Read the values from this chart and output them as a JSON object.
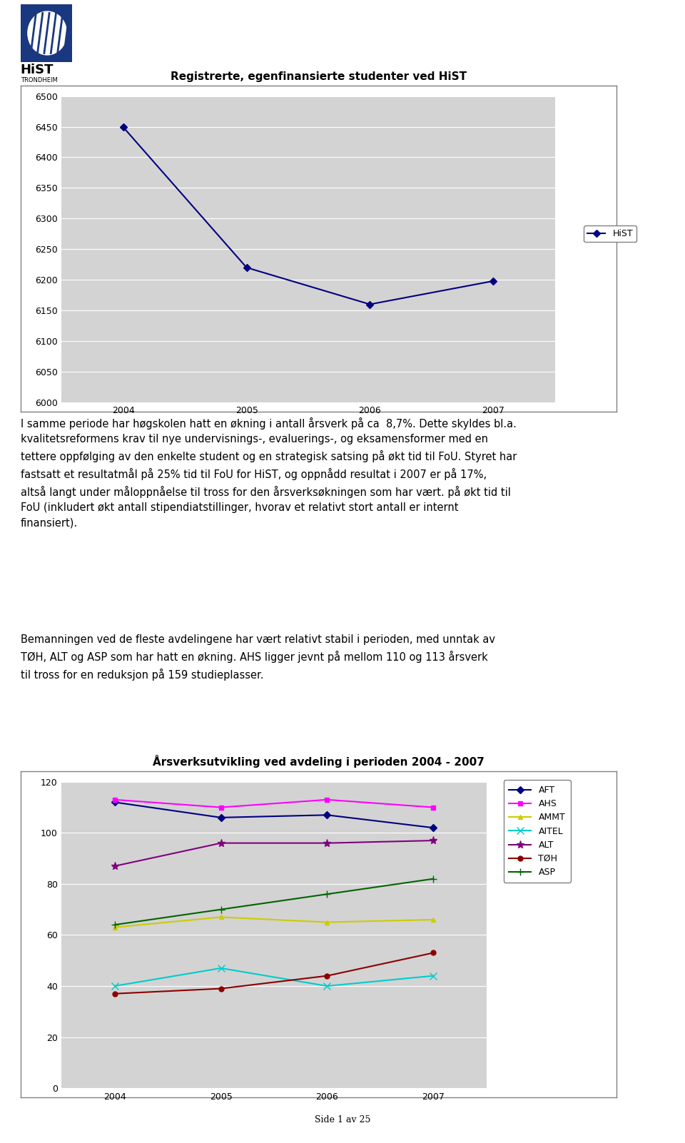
{
  "page_bg": "#ffffff",
  "chart1": {
    "title": "Registrerte, egenfinansierte studenter ved HiST",
    "years": [
      2004,
      2005,
      2006,
      2007
    ],
    "hist_values": [
      6449,
      6220,
      6160,
      6198
    ],
    "color": "#000080",
    "ylim": [
      6000,
      6500
    ],
    "yticks": [
      6000,
      6050,
      6100,
      6150,
      6200,
      6250,
      6300,
      6350,
      6400,
      6450,
      6500
    ],
    "legend_label": "HiST"
  },
  "text1_lines": [
    "I samme periode har høgskolen hatt en økning i antall årsverk på ca  8,7%. Dette skyldes bl.a.",
    "kvalitetsreformens krav til nye undervisnings-, evaluerings-, og eksamensformer med en",
    "tettere oppfølging av den enkelte student og en strategisk satsing på økt tid til FoU. Styret har",
    "fastsatt et resultatmål på 25% tid til FoU for HiST, og oppnådd resultat i 2007 er på 17%,",
    "altså langt under måloppnåelse til tross for den årsverksøkningen som har vært. på økt tid til",
    "FoU (inkludert økt antall stipendiatstillinger, hvorav et relativt stort antall er internt",
    "finansiert)."
  ],
  "text2_lines": [
    "Bemanningen ved de fleste avdelingene har vært relativt stabil i perioden, med unntak av",
    "TØH, ALT og ASP som har hatt en økning. AHS ligger jevnt på mellom 110 og 113 årsverk",
    "til tross for en reduksjon på 159 studieplasser."
  ],
  "chart2": {
    "title": "Årsverksutvikling ved avdeling i perioden 2004 - 2007",
    "years": [
      2004,
      2005,
      2006,
      2007
    ],
    "series_order": [
      "AFT",
      "AHS",
      "AMMT",
      "AITEL",
      "ALT",
      "TØH",
      "ASP"
    ],
    "series": {
      "AFT": {
        "values": [
          112,
          106,
          107,
          102
        ],
        "color": "#000080",
        "marker": "D"
      },
      "AHS": {
        "values": [
          113,
          110,
          113,
          110
        ],
        "color": "#FF00FF",
        "marker": "s"
      },
      "AMMT": {
        "values": [
          63,
          67,
          65,
          66
        ],
        "color": "#CCCC00",
        "marker": "^"
      },
      "AITEL": {
        "values": [
          40,
          47,
          40,
          44
        ],
        "color": "#00CCCC",
        "marker": "x"
      },
      "ALT": {
        "values": [
          87,
          96,
          96,
          97
        ],
        "color": "#800080",
        "marker": "*"
      },
      "TØH": {
        "values": [
          37,
          39,
          44,
          53
        ],
        "color": "#8B0000",
        "marker": "o"
      },
      "ASP": {
        "values": [
          64,
          70,
          76,
          82
        ],
        "color": "#006400",
        "marker": "+"
      }
    },
    "ylim": [
      0,
      120
    ],
    "yticks": [
      0,
      20,
      40,
      60,
      80,
      100,
      120
    ]
  },
  "footer": "Side 1 av 25"
}
